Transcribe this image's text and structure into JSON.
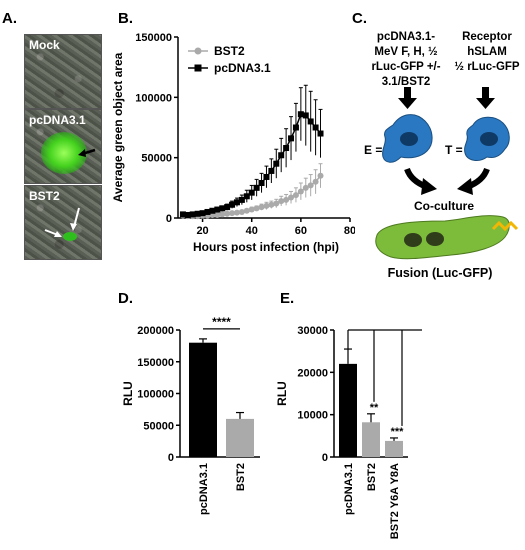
{
  "panels": {
    "a": {
      "label": "A.",
      "images": [
        {
          "label": "Mock"
        },
        {
          "label": "pcDNA3.1"
        },
        {
          "label": "BST2"
        }
      ]
    },
    "b": {
      "label": "B."
    },
    "c": {
      "label": "C.",
      "effector_text": [
        "pcDNA3.1-",
        "MeV F, H, ½",
        "rLuc-GFP +/-",
        "3.1/BST2"
      ],
      "target_text": [
        "Receptor",
        "hSLAM",
        "½ rLuc-GFP"
      ],
      "e_label": "E =",
      "t_label": "T =",
      "coculture": "Co-culture",
      "fusion": "Fusion (Luc-GFP)"
    },
    "d": {
      "label": "D."
    },
    "e": {
      "label": "E."
    }
  },
  "chart_data": [
    {
      "id": "B",
      "type": "line",
      "xlabel": "Hours post infection (hpi)",
      "ylabel": "Average green object area",
      "xlim": [
        10,
        80
      ],
      "ylim": [
        0,
        150000
      ],
      "xticks": [
        20,
        40,
        60,
        80
      ],
      "yticks": [
        0,
        50000,
        100000,
        150000
      ],
      "legend_position": "top-left",
      "series": [
        {
          "name": "BST2",
          "color": "#aaaaaa",
          "marker": "circle",
          "x": [
            12,
            14,
            16,
            18,
            20,
            22,
            24,
            26,
            28,
            30,
            32,
            34,
            36,
            38,
            40,
            42,
            44,
            46,
            48,
            50,
            52,
            54,
            56,
            58,
            60,
            62,
            64,
            66,
            68
          ],
          "y": [
            2000,
            1500,
            1500,
            1500,
            2000,
            2000,
            2500,
            2500,
            3000,
            3500,
            4000,
            4500,
            5000,
            6000,
            7000,
            8000,
            9000,
            10000,
            11000,
            12000,
            14000,
            15000,
            17000,
            19000,
            22000,
            25000,
            27000,
            30000,
            35000
          ],
          "err": [
            500,
            500,
            500,
            500,
            500,
            500,
            500,
            800,
            800,
            1000,
            1000,
            1200,
            1500,
            1500,
            2000,
            2000,
            2500,
            3000,
            3000,
            3500,
            4000,
            4500,
            5000,
            6000,
            7000,
            8000,
            9000,
            10000,
            10000
          ]
        },
        {
          "name": "pcDNA3.1",
          "color": "#000000",
          "marker": "square",
          "x": [
            12,
            14,
            16,
            18,
            20,
            22,
            24,
            26,
            28,
            30,
            32,
            34,
            36,
            38,
            40,
            42,
            44,
            46,
            48,
            50,
            52,
            54,
            56,
            58,
            60,
            62,
            64,
            66,
            68
          ],
          "y": [
            3000,
            2500,
            3000,
            3500,
            4000,
            5000,
            6000,
            7000,
            8000,
            9000,
            11000,
            13000,
            15000,
            18000,
            21000,
            25000,
            29000,
            34000,
            39000,
            45000,
            52000,
            58000,
            66000,
            75000,
            86000,
            85000,
            80000,
            75000,
            70000
          ],
          "err": [
            800,
            800,
            800,
            1000,
            1000,
            1200,
            1500,
            1500,
            2000,
            2500,
            3000,
            3500,
            4000,
            5000,
            6000,
            7000,
            8000,
            9000,
            10000,
            12000,
            14000,
            16000,
            18000,
            20000,
            22000,
            25000,
            25000,
            23000,
            20000
          ]
        }
      ]
    },
    {
      "id": "D",
      "type": "bar",
      "ylabel": "RLU",
      "ylim": [
        0,
        200000
      ],
      "yticks": [
        0,
        50000,
        100000,
        150000,
        200000
      ],
      "categories": [
        "pcDNA3.1",
        "BST2"
      ],
      "values": [
        180000,
        60000
      ],
      "errors": [
        6000,
        10000
      ],
      "colors": [
        "#000000",
        "#aaaaaa"
      ],
      "significance": "****"
    },
    {
      "id": "E",
      "type": "bar",
      "ylabel": "RLU",
      "ylim": [
        0,
        30000
      ],
      "yticks": [
        0,
        10000,
        20000,
        30000
      ],
      "categories": [
        "pcDNA3.1",
        "BST2",
        "BST2 Y6A Y8A"
      ],
      "values": [
        22000,
        8200,
        3800
      ],
      "errors": [
        3500,
        2000,
        700
      ],
      "colors": [
        "#000000",
        "#aaaaaa",
        "#aaaaaa"
      ],
      "significance": [
        "",
        "**",
        "***"
      ]
    }
  ]
}
